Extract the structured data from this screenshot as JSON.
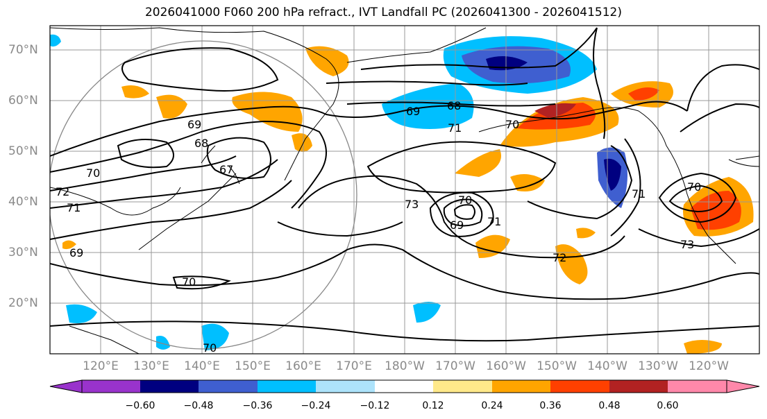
{
  "title": "2026041000 F060 200 hPa refract., IVT Landfall PC (2026041300 - 2026041512)",
  "lat_labels": [
    "70°N",
    "60°N",
    "50°N",
    "40°N",
    "30°N",
    "20°N"
  ],
  "lon_labels": [
    "120°E",
    "130°E",
    "140°E",
    "150°E",
    "160°E",
    "170°E",
    "180°W",
    "170°W",
    "160°W",
    "150°W",
    "140°W",
    "130°W",
    "120°W"
  ],
  "contour_labels": [
    "69",
    "68",
    "67",
    "72",
    "71",
    "70",
    "69",
    "70",
    "73",
    "70",
    "69",
    "71",
    "72",
    "68",
    "69",
    "71",
    "70",
    "71",
    "70",
    "73",
    "70"
  ],
  "colorbar": {
    "ticks": [
      "−0.60",
      "−0.48",
      "−0.36",
      "−0.24",
      "−0.12",
      "0.12",
      "0.24",
      "0.36",
      "0.48",
      "0.60"
    ],
    "colors": [
      "#9933cc",
      "#000080",
      "#3f5fd0",
      "#00bfff",
      "#ade3fb",
      "#ffffff",
      "#ffe98a",
      "#ffa500",
      "#ff4000",
      "#b22222",
      "#ff88aa"
    ]
  }
}
